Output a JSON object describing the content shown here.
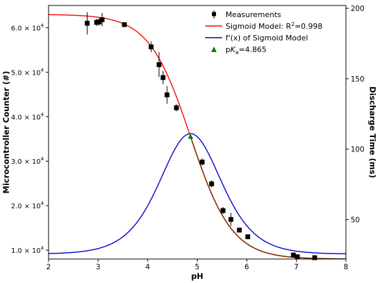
{
  "chart_data": {
    "type": "scatter",
    "xlabel": "pH",
    "ylabel_left": "Microcontroller Counter (#)",
    "ylabel_right": "Discharge Time (ms)",
    "xlim": [
      2,
      8
    ],
    "ylim_left": [
      8000,
      65000
    ],
    "ylim_right": [
      22,
      202
    ],
    "x_ticks": [
      2,
      3,
      4,
      5,
      6,
      7,
      8
    ],
    "y_left_ticks": [
      {
        "mant": "1.0",
        "value": 10000
      },
      {
        "mant": "2.0",
        "value": 20000
      },
      {
        "mant": "3.0",
        "value": 30000
      },
      {
        "mant": "4.0",
        "value": 40000
      },
      {
        "mant": "5.0",
        "value": 50000
      },
      {
        "mant": "6.0",
        "value": 60000
      }
    ],
    "y_left_tick_suffix": "× 10",
    "y_left_tick_exp": "4",
    "y_right_ticks": [
      50,
      100,
      150,
      200
    ],
    "grid": false,
    "legend_position": "top-right",
    "legend": {
      "measurements": "Measurements",
      "sigmoid_prefix": "Sigmoid Model: R",
      "sigmoid_sup": "2",
      "sigmoid_suffix": "=0.998",
      "derivative": "f'(x) of Sigmoid Model",
      "pka_prefix": "p",
      "pka_italic": "K",
      "pka_sub": "a",
      "pka_suffix": "=4.865"
    },
    "colors": {
      "sigmoid": "#ff0000",
      "derivative": "#0000cc",
      "overlap": "#7a2d00",
      "measurements": "#000000",
      "pka": "#008000"
    },
    "sigmoid_model": {
      "bottom": 8000,
      "top": 63000,
      "center": 4.865,
      "scale": 0.42
    },
    "derivative_model": {
      "baseline_ms": 25.5,
      "peak_ms": 111.0,
      "center": 4.865,
      "scale": 0.42
    },
    "pka_point": {
      "x": 4.865,
      "y": 35500
    },
    "measurements": [
      {
        "x": 2.78,
        "y": 61000,
        "err": 2500
      },
      {
        "x": 2.97,
        "y": 61200,
        "err": 800
      },
      {
        "x": 3.02,
        "y": 61300,
        "err": 800
      },
      {
        "x": 3.08,
        "y": 61800,
        "err": 1500
      },
      {
        "x": 3.53,
        "y": 60700,
        "err": 500
      },
      {
        "x": 4.07,
        "y": 55700,
        "err": 1200
      },
      {
        "x": 4.23,
        "y": 51700,
        "err": 2800
      },
      {
        "x": 4.31,
        "y": 48800,
        "err": 1500
      },
      {
        "x": 4.39,
        "y": 44900,
        "err": 2000
      },
      {
        "x": 4.58,
        "y": 42000,
        "err": 800
      },
      {
        "x": 5.1,
        "y": 29800,
        "err": 800
      },
      {
        "x": 5.29,
        "y": 24900,
        "err": 800
      },
      {
        "x": 5.52,
        "y": 18900,
        "err": 800
      },
      {
        "x": 5.68,
        "y": 16900,
        "err": 1500
      },
      {
        "x": 5.85,
        "y": 14500,
        "err": 500
      },
      {
        "x": 6.02,
        "y": 13000,
        "err": 500
      },
      {
        "x": 6.94,
        "y": 8900,
        "err": 500
      },
      {
        "x": 7.02,
        "y": 8500,
        "err": 300
      },
      {
        "x": 7.37,
        "y": 8300,
        "err": 300
      }
    ]
  }
}
